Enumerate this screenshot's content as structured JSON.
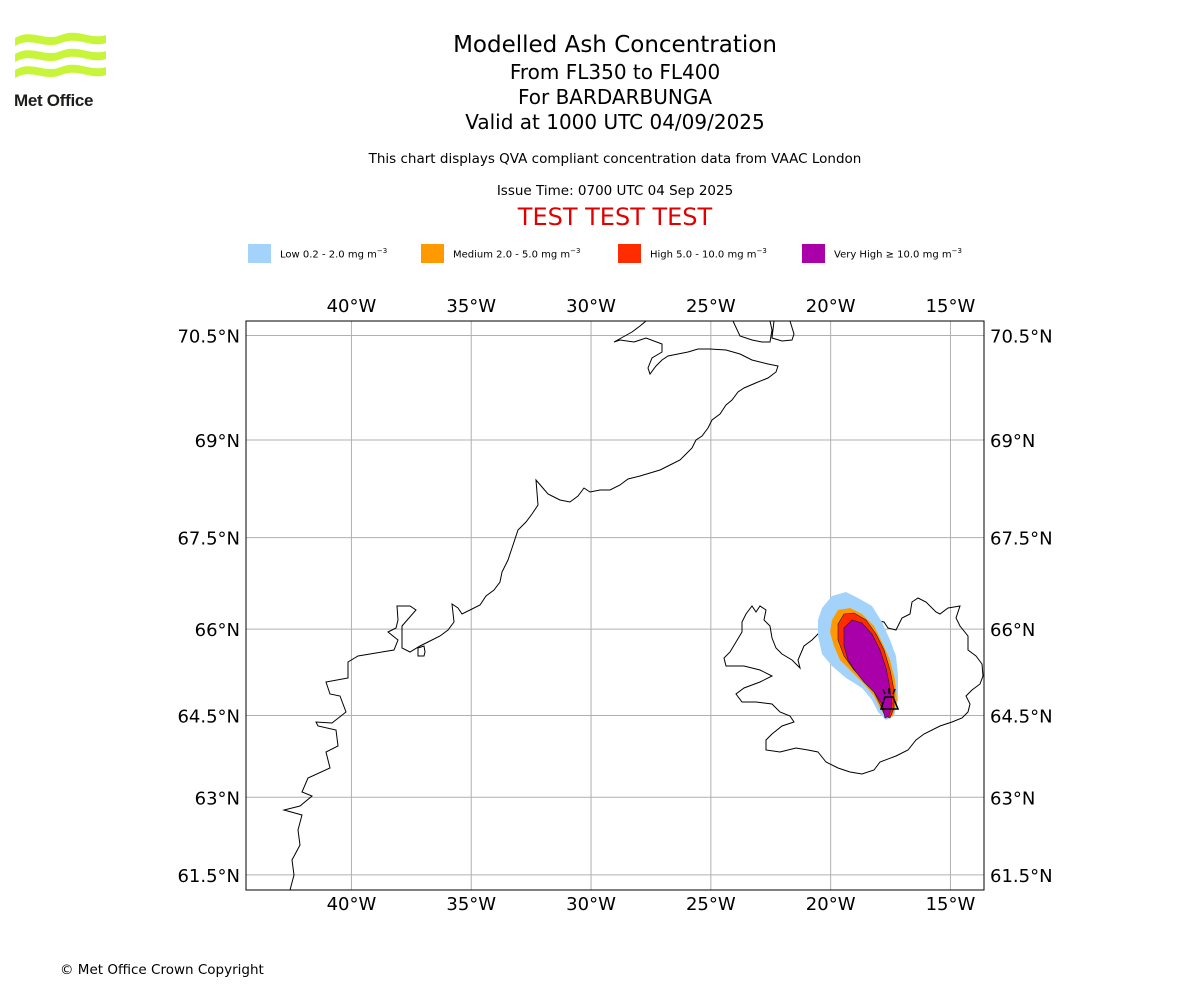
{
  "logo": {
    "text": "Met Office"
  },
  "titles": {
    "main": "Modelled Ash Concentration",
    "levels": "From FL350 to FL400",
    "volcano": "For BARDARBUNGA",
    "valid": "Valid at 1000 UTC 04/09/2025",
    "note": "This chart displays QVA compliant concentration data from VAAC London",
    "issue": "Issue Time: 0700 UTC 04 Sep 2025",
    "test": "TEST TEST TEST"
  },
  "legend": [
    {
      "name": "Low",
      "prefix": "Low 0.2 - 2.0 mg m",
      "color": "#a3d3fb"
    },
    {
      "name": "Medium",
      "prefix": "Medium 2.0 - 5.0 mg m",
      "color": "#ff9900"
    },
    {
      "name": "High",
      "prefix": "High 5.0 - 10.0 mg m",
      "color": "#ff2c00"
    },
    {
      "name": "Very High",
      "prefix": "Very High  ≥  10.0 mg m",
      "color": "#aa00aa"
    }
  ],
  "legend_unit_exponent": "−3",
  "map": {
    "longitude_ticks": [
      "40°W",
      "35°W",
      "30°W",
      "25°W",
      "20°W",
      "15°W"
    ],
    "latitude_ticks": [
      "70.5°N",
      "69°N",
      "67.5°N",
      "66°N",
      "64.5°N",
      "63°N",
      "61.5°N"
    ],
    "lon_range": [
      -44.4,
      -13.6
    ],
    "lat_range": [
      61.2,
      70.7
    ],
    "grid": true,
    "volcano_marker": "volcano-icon",
    "coastline_color": "#000000",
    "grid_color": "#b0b0b0"
  },
  "copyright": "© Met Office Crown Copyright"
}
